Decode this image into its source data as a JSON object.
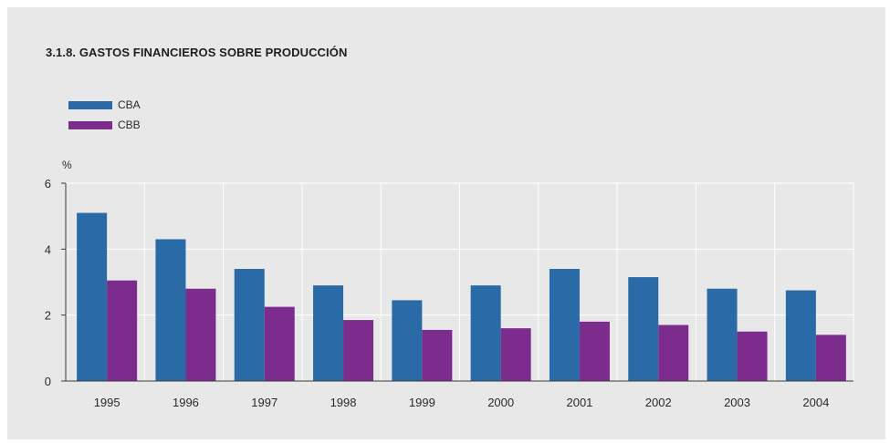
{
  "chart_data": {
    "type": "bar",
    "title": "3.1.8. GASTOS FINANCIEROS SOBRE PRODUCCIÓN",
    "ylabel": "%",
    "xlabel": "",
    "categories": [
      "1995",
      "1996",
      "1997",
      "1998",
      "1999",
      "2000",
      "2001",
      "2002",
      "2003",
      "2004"
    ],
    "series": [
      {
        "name": "CBA",
        "color": "#2a6aa6",
        "values": [
          5.1,
          4.3,
          3.4,
          2.9,
          2.45,
          2.9,
          3.4,
          3.15,
          2.8,
          2.75
        ]
      },
      {
        "name": "CBB",
        "color": "#7b2c8c",
        "values": [
          3.05,
          2.8,
          2.25,
          1.85,
          1.55,
          1.6,
          1.8,
          1.7,
          1.5,
          1.4
        ]
      }
    ],
    "ylim": [
      0,
      6
    ],
    "yticks": [
      "0",
      "2",
      "4",
      "6"
    ],
    "grid": true,
    "legend_position": "top-left"
  }
}
